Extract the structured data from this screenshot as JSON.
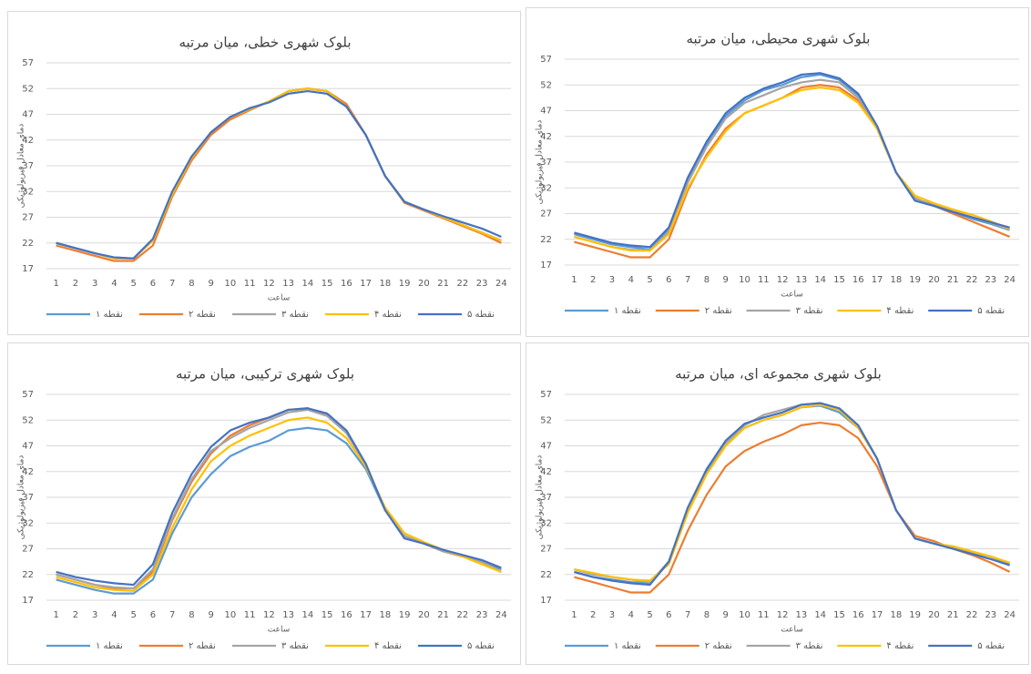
{
  "chart_data": [
    {
      "type": "line",
      "title": "بلوک شهری خطی، میان مرتبه",
      "y_label": "دمای معادل فیزیولوژیکی",
      "x_label": "ساعت",
      "categories": [
        "1",
        "2",
        "3",
        "4",
        "5",
        "6",
        "7",
        "8",
        "9",
        "10",
        "11",
        "12",
        "13",
        "14",
        "15",
        "16",
        "17",
        "18",
        "19",
        "20",
        "21",
        "22",
        "23",
        "24"
      ],
      "ylim": [
        17,
        57
      ],
      "yticks": [
        17,
        22,
        27,
        32,
        37,
        42,
        47,
        52,
        57
      ],
      "grid": true,
      "legend": "bottom",
      "series": [
        {
          "name": "نقطه ۱",
          "color": "#5b9bd5",
          "values": [
            22,
            21,
            20,
            19,
            19,
            22.5,
            31.5,
            38.5,
            43.5,
            46.5,
            48,
            49.5,
            51.5,
            52,
            51.5,
            48.5,
            43,
            35,
            30,
            28.5,
            27,
            25.5,
            24,
            22.5
          ]
        },
        {
          "name": "نقطه ۲",
          "color": "#ed7d31",
          "values": [
            21.5,
            20.5,
            19.5,
            18.5,
            18.5,
            21.5,
            31,
            38,
            43,
            46,
            47.8,
            49.5,
            51.5,
            52,
            51.5,
            49,
            43,
            35,
            29.8,
            28.3,
            26.8,
            25.3,
            23.8,
            22
          ]
        },
        {
          "name": "نقطه ۳",
          "color": "#a5a5a5",
          "values": [
            22,
            21,
            20,
            19,
            19,
            22.5,
            31.5,
            38.5,
            43.5,
            46.5,
            48,
            49.5,
            51.5,
            52,
            51.5,
            48.5,
            43,
            35,
            30,
            28.5,
            27,
            25.5,
            24,
            22.5
          ]
        },
        {
          "name": "نقطه ۴",
          "color": "#ffc000",
          "values": [
            22,
            21,
            20,
            19,
            19,
            22.5,
            31.5,
            38.5,
            43.5,
            46.5,
            48,
            49.5,
            51.5,
            52,
            51.5,
            48.5,
            43,
            35,
            30,
            28.5,
            27,
            25.5,
            24,
            22.5
          ]
        },
        {
          "name": "نقطه ۵",
          "color": "#4472c4",
          "values": [
            22,
            21,
            20,
            19.2,
            19,
            22.8,
            32,
            38.8,
            43.5,
            46.5,
            48.2,
            49.3,
            51,
            51.5,
            51,
            48.5,
            43,
            35,
            30,
            28.5,
            27.2,
            26,
            24.8,
            23.2
          ]
        }
      ]
    },
    {
      "type": "line",
      "title": "بلوک شهری محیطی، میان مرتبه",
      "y_label": "دمای معادل فیزیولوژیکی",
      "x_label": "ساعت",
      "categories": [
        "1",
        "2",
        "3",
        "4",
        "5",
        "6",
        "7",
        "8",
        "9",
        "10",
        "11",
        "12",
        "13",
        "14",
        "15",
        "16",
        "17",
        "18",
        "19",
        "20",
        "21",
        "22",
        "23",
        "24"
      ],
      "ylim": [
        17,
        57
      ],
      "yticks": [
        17,
        22,
        27,
        32,
        37,
        42,
        47,
        52,
        57
      ],
      "grid": true,
      "legend": "bottom",
      "series": [
        {
          "name": "نقطه ۱",
          "color": "#5b9bd5",
          "values": [
            23,
            22,
            21,
            20.5,
            20,
            24,
            33.5,
            40.5,
            46,
            49,
            51,
            52,
            53.5,
            54,
            53,
            50,
            44,
            35,
            29.5,
            28.5,
            27.3,
            26,
            25,
            23.8
          ]
        },
        {
          "name": "نقطه ۲",
          "color": "#ed7d31",
          "values": [
            21.5,
            20.5,
            19.5,
            18.5,
            18.5,
            22,
            31.5,
            38.5,
            43.5,
            46.5,
            48,
            49.5,
            51.5,
            52,
            51.5,
            49,
            43.5,
            35,
            30,
            28.5,
            27,
            25.5,
            24,
            22.5
          ]
        },
        {
          "name": "نقطه ۳",
          "color": "#a5a5a5",
          "values": [
            22.5,
            21.5,
            20.5,
            20,
            19.8,
            23.5,
            33,
            40,
            45.5,
            48.5,
            50,
            51.5,
            52.5,
            53,
            52.5,
            49.5,
            44,
            35,
            29.8,
            28.8,
            27.5,
            26.3,
            25.2,
            24
          ]
        },
        {
          "name": "نقطه ۴",
          "color": "#ffc000",
          "values": [
            22.5,
            21.5,
            20.5,
            19.8,
            19.8,
            23,
            32,
            38,
            43,
            46.5,
            48,
            49.5,
            51,
            51.5,
            51,
            48.5,
            43.5,
            35,
            30.5,
            29,
            27.8,
            26.8,
            25.5,
            24
          ]
        },
        {
          "name": "نقطه ۵",
          "color": "#4472c4",
          "values": [
            23.3,
            22.3,
            21.3,
            20.8,
            20.5,
            24.3,
            34,
            41,
            46.5,
            49.5,
            51.3,
            52.5,
            54,
            54.3,
            53.3,
            50.3,
            44,
            35,
            29.5,
            28.5,
            27.3,
            26.3,
            25.3,
            24.3
          ]
        }
      ]
    },
    {
      "type": "line",
      "title": "بلوک شهری ترکیبی، میان مرتبه",
      "y_label": "دمای معادل فیزیولوژیکی",
      "x_label": "ساعت",
      "categories": [
        "1",
        "2",
        "3",
        "4",
        "5",
        "6",
        "7",
        "8",
        "9",
        "10",
        "11",
        "12",
        "13",
        "14",
        "15",
        "16",
        "17",
        "18",
        "19",
        "20",
        "21",
        "22",
        "23",
        "24"
      ],
      "ylim": [
        17,
        57
      ],
      "yticks": [
        17,
        22,
        27,
        32,
        37,
        42,
        47,
        52,
        57
      ],
      "grid": true,
      "legend": "bottom",
      "series": [
        {
          "name": "نقطه ۱",
          "color": "#5b9bd5",
          "values": [
            21,
            20,
            19,
            18.3,
            18.3,
            21,
            30,
            37,
            41.5,
            45,
            46.8,
            48,
            50,
            50.5,
            50,
            47.5,
            42.5,
            34.5,
            29.5,
            28,
            26.5,
            25.5,
            24.5,
            23
          ]
        },
        {
          "name": "نقطه ۲",
          "color": "#ed7d31",
          "values": [
            22,
            21,
            20,
            19.3,
            19.3,
            22.5,
            32.5,
            40,
            45.5,
            49,
            51,
            52.5,
            54,
            54.3,
            53,
            49.5,
            43.5,
            34.5,
            29.5,
            28,
            26.5,
            25.5,
            24.5,
            22.5
          ]
        },
        {
          "name": "نقطه ۳",
          "color": "#a5a5a5",
          "values": [
            22,
            21,
            20,
            19.5,
            19.3,
            23,
            33,
            40.5,
            46,
            48.5,
            50.5,
            52,
            53.5,
            54,
            52.8,
            49.5,
            43.5,
            34.5,
            29.5,
            28,
            26.5,
            25.5,
            24.5,
            22.5
          ]
        },
        {
          "name": "نقطه ۴",
          "color": "#ffc000",
          "values": [
            21.5,
            20.5,
            19.5,
            19,
            18.8,
            22,
            31,
            38.5,
            44,
            47,
            49,
            50.5,
            52,
            52.5,
            51.5,
            48.5,
            43,
            35,
            30,
            28.3,
            26.8,
            25.5,
            24,
            22.5
          ]
        },
        {
          "name": "نقطه ۵",
          "color": "#4472c4",
          "values": [
            22.5,
            21.5,
            20.8,
            20.3,
            20,
            24,
            34,
            41.5,
            46.8,
            50,
            51.5,
            52.5,
            54,
            54.3,
            53.3,
            50,
            43.5,
            34.5,
            29,
            28,
            26.8,
            25.8,
            24.8,
            23.3
          ]
        }
      ]
    },
    {
      "type": "line",
      "title": "بلوک شهری مجموعه ای، میان مرتبه",
      "y_label": "دمای معادل فیزیولوژیکی",
      "x_label": "ساعت",
      "categories": [
        "1",
        "2",
        "3",
        "4",
        "5",
        "6",
        "7",
        "8",
        "9",
        "10",
        "11",
        "12",
        "13",
        "14",
        "15",
        "16",
        "17",
        "18",
        "19",
        "20",
        "21",
        "22",
        "23",
        "24"
      ],
      "ylim": [
        17,
        57
      ],
      "yticks": [
        17,
        22,
        27,
        32,
        37,
        42,
        47,
        52,
        57
      ],
      "grid": true,
      "legend": "bottom",
      "series": [
        {
          "name": "نقطه ۱",
          "color": "#5b9bd5",
          "values": [
            22.5,
            21.5,
            21,
            20.5,
            20.3,
            24.5,
            34.5,
            42,
            47,
            50.5,
            52,
            53,
            54.5,
            54.8,
            53.5,
            50.5,
            44.5,
            34.5,
            29,
            28,
            27,
            26,
            25,
            24
          ]
        },
        {
          "name": "نقطه ۲",
          "color": "#ed7d31",
          "values": [
            21.5,
            20.5,
            19.5,
            18.5,
            18.5,
            22,
            30.5,
            37.5,
            43,
            46,
            47.8,
            49.2,
            51,
            51.5,
            51,
            48.5,
            43,
            34.5,
            29.5,
            28.5,
            27,
            25.8,
            24.3,
            22.5
          ]
        },
        {
          "name": "نقطه ۳",
          "color": "#a5a5a5",
          "values": [
            23,
            22,
            21.5,
            21,
            20.5,
            24.5,
            34.5,
            42.5,
            47.5,
            51,
            53,
            54,
            55,
            55.3,
            54,
            51,
            44.5,
            34.5,
            29,
            28,
            27.3,
            26.3,
            25.5,
            24.2
          ]
        },
        {
          "name": "نقطه ۴",
          "color": "#ffc000",
          "values": [
            23,
            22.3,
            21.5,
            21,
            20.8,
            24,
            34,
            41.5,
            47,
            50.5,
            52,
            53,
            54.5,
            55,
            54,
            50.5,
            44.5,
            34.5,
            29,
            28,
            27.5,
            26.5,
            25.5,
            24.3
          ]
        },
        {
          "name": "نقطه ۵",
          "color": "#4472c4",
          "values": [
            22.5,
            21.5,
            20.8,
            20.3,
            20,
            24.5,
            35,
            42.5,
            48,
            51.3,
            52.5,
            53.5,
            55,
            55.3,
            54.3,
            51,
            44.5,
            34.5,
            29,
            28,
            27,
            26,
            25,
            23.8
          ]
        }
      ]
    }
  ]
}
